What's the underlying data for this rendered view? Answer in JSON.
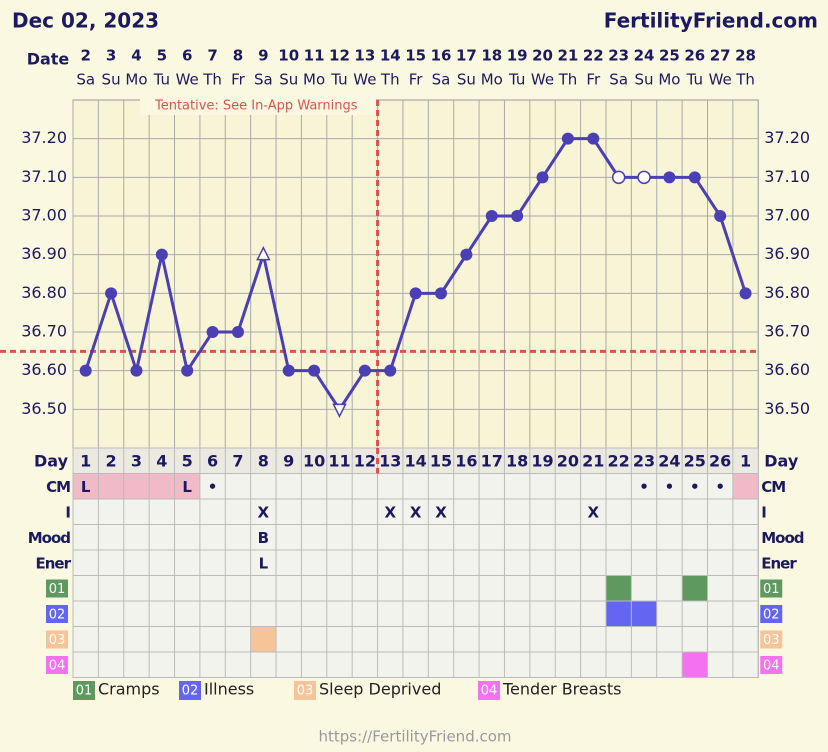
{
  "header": {
    "date": "Dec 02, 2023",
    "site": "FertilityFriend.com"
  },
  "chart_data": {
    "type": "line",
    "x_label": "Date",
    "categories": [
      "2",
      "3",
      "4",
      "5",
      "6",
      "7",
      "8",
      "9",
      "10",
      "11",
      "12",
      "13",
      "14",
      "15",
      "16",
      "17",
      "18",
      "19",
      "20",
      "21",
      "22",
      "23",
      "24",
      "25",
      "26",
      "27",
      "28"
    ],
    "weekdays": [
      "Sa",
      "Su",
      "Mo",
      "Tu",
      "We",
      "Th",
      "Fr",
      "Sa",
      "Su",
      "Mo",
      "Tu",
      "We",
      "Th",
      "Fr",
      "Sa",
      "Su",
      "Mo",
      "Tu",
      "We",
      "Th",
      "Fr",
      "Sa",
      "Su",
      "Mo",
      "Tu",
      "We",
      "Th"
    ],
    "series": [
      {
        "color": "#4b3fb5",
        "values": [
          36.6,
          36.8,
          36.6,
          36.9,
          36.6,
          36.7,
          36.7,
          36.9,
          36.6,
          36.6,
          36.5,
          36.6,
          36.6,
          36.8,
          36.8,
          36.9,
          37.0,
          37.0,
          37.1,
          37.2,
          37.2,
          37.1,
          37.1,
          37.1,
          37.1,
          37.0,
          36.8
        ],
        "markers": [
          "dot",
          "dot",
          "dot",
          "dot",
          "dot",
          "dot",
          "dot",
          "triangle-up-open",
          "dot",
          "dot",
          "triangle-down-open",
          "dot",
          "dot",
          "dot",
          "dot",
          "dot",
          "dot",
          "dot",
          "dot",
          "dot",
          "dot",
          "circle-open",
          "circle-open",
          "dot",
          "dot",
          "dot",
          "dot"
        ]
      }
    ],
    "ylim": [
      36.4,
      37.3
    ],
    "yticks": [
      {
        "value": 36.5,
        "label": "36.50"
      },
      {
        "value": 36.6,
        "label": "36.60"
      },
      {
        "value": 36.7,
        "label": "36.70"
      },
      {
        "value": 36.8,
        "label": "36.80"
      },
      {
        "value": 36.9,
        "label": "36.90"
      },
      {
        "value": 37.0,
        "label": "37.00"
      },
      {
        "value": 37.1,
        "label": "37.10"
      },
      {
        "value": 37.2,
        "label": "37.20"
      }
    ],
    "grid": true,
    "coverline": 36.65,
    "ovulation_date": "14",
    "annotation": "Tentative: See In-App Warnings",
    "line_style_color": "#d9534f"
  },
  "table": {
    "day_label": "Day",
    "days": [
      1,
      2,
      3,
      4,
      5,
      6,
      7,
      8,
      9,
      10,
      11,
      12,
      13,
      14,
      15,
      16,
      17,
      18,
      19,
      20,
      21,
      22,
      23,
      24,
      25,
      26,
      1
    ],
    "rows": [
      {
        "label": "CM",
        "cells": [
          "L",
          null,
          null,
          null,
          "L",
          "•",
          null,
          null,
          null,
          null,
          null,
          null,
          null,
          null,
          null,
          null,
          null,
          null,
          null,
          null,
          null,
          null,
          "•",
          "•",
          "•",
          "•",
          null
        ],
        "shaded": [
          true,
          true,
          true,
          true,
          true,
          false,
          false,
          false,
          false,
          false,
          false,
          false,
          false,
          false,
          false,
          false,
          false,
          false,
          false,
          false,
          false,
          false,
          false,
          false,
          false,
          false,
          true
        ]
      },
      {
        "label": "I",
        "cells": [
          null,
          null,
          null,
          null,
          null,
          null,
          null,
          "X",
          null,
          null,
          null,
          null,
          "X",
          "X",
          "X",
          null,
          null,
          null,
          null,
          null,
          "X",
          null,
          null,
          null,
          null,
          null,
          null
        ]
      },
      {
        "label": "Mood",
        "cells": [
          null,
          null,
          null,
          null,
          null,
          null,
          null,
          "B",
          null,
          null,
          null,
          null,
          null,
          null,
          null,
          null,
          null,
          null,
          null,
          null,
          null,
          null,
          null,
          null,
          null,
          null,
          null
        ]
      },
      {
        "label": "Ener",
        "cells": [
          null,
          null,
          null,
          null,
          null,
          null,
          null,
          "L",
          null,
          null,
          null,
          null,
          null,
          null,
          null,
          null,
          null,
          null,
          null,
          null,
          null,
          null,
          null,
          null,
          null,
          null,
          null
        ]
      }
    ],
    "symptoms": [
      {
        "code": "01",
        "name": "Cramps",
        "color": "#5e9960",
        "marked": [
          false,
          false,
          false,
          false,
          false,
          false,
          false,
          false,
          false,
          false,
          false,
          false,
          false,
          false,
          false,
          false,
          false,
          false,
          false,
          false,
          false,
          true,
          false,
          false,
          true,
          false,
          false
        ]
      },
      {
        "code": "02",
        "name": "Illness",
        "color": "#6366f0",
        "marked": [
          false,
          false,
          false,
          false,
          false,
          false,
          false,
          false,
          false,
          false,
          false,
          false,
          false,
          false,
          false,
          false,
          false,
          false,
          false,
          false,
          false,
          true,
          true,
          false,
          false,
          false,
          false
        ]
      },
      {
        "code": "03",
        "name": "Sleep Deprived",
        "color": "#f7c49a",
        "marked": [
          false,
          false,
          false,
          false,
          false,
          false,
          false,
          true,
          false,
          false,
          false,
          false,
          false,
          false,
          false,
          false,
          false,
          false,
          false,
          false,
          false,
          false,
          false,
          false,
          false,
          false,
          false
        ]
      },
      {
        "code": "04",
        "name": "Tender Breasts",
        "color": "#f472f0",
        "marked": [
          false,
          false,
          false,
          false,
          false,
          false,
          false,
          false,
          false,
          false,
          false,
          false,
          false,
          false,
          false,
          false,
          false,
          false,
          false,
          false,
          false,
          false,
          false,
          false,
          true,
          false,
          false
        ]
      }
    ]
  },
  "footer": {
    "url": "https://FertilityFriend.com"
  }
}
